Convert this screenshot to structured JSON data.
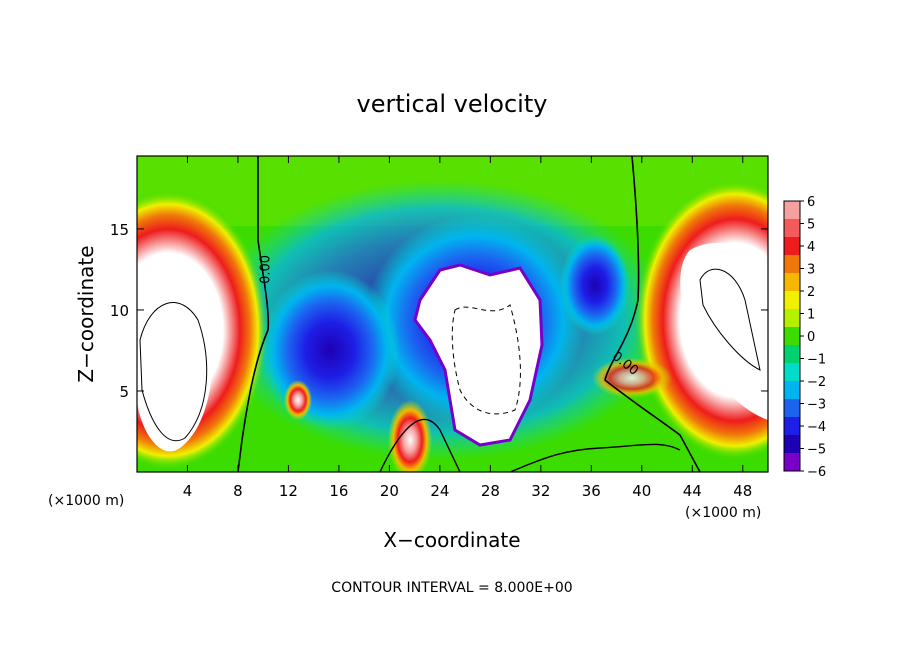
{
  "chart_data": {
    "type": "heatmap",
    "title": "vertical velocity",
    "xlabel": "X−coordinate",
    "ylabel": "Z−coordinate",
    "x_unit_left": "(×1000 m)",
    "x_unit_right": "(×1000 m)",
    "footer": "CONTOUR INTERVAL = 8.000E+00",
    "xlim": [
      0,
      50
    ],
    "ylim": [
      0,
      19.5
    ],
    "x_ticks": [
      4,
      8,
      12,
      16,
      20,
      24,
      28,
      32,
      36,
      40,
      44,
      48
    ],
    "x_tick_labels": [
      "4",
      "8",
      "12",
      "16",
      "20",
      "24",
      "28",
      "32",
      "36",
      "40",
      "44",
      "48"
    ],
    "y_ticks": [
      5,
      10,
      15
    ],
    "y_tick_labels": [
      "5",
      "10",
      "15"
    ],
    "contour_labels": [
      {
        "text": "0.00",
        "x": 10.5,
        "y": 12.5
      },
      {
        "text": "0.00",
        "x": 38.5,
        "y": 6.5
      }
    ],
    "colorbar": {
      "vmin": -6,
      "vmax": 6,
      "tick_labels": [
        "6",
        "5",
        "4",
        "3",
        "2",
        "1",
        "0",
        "−1",
        "−2",
        "−3",
        "−4",
        "−5",
        "−6"
      ],
      "colors": [
        "#f7a0a0",
        "#f45a5a",
        "#ee1c1c",
        "#f0780a",
        "#f4b800",
        "#f0f000",
        "#b4f000",
        "#3cdc00",
        "#00d26e",
        "#00dcc8",
        "#00b4f0",
        "#1c64f0",
        "#1e1ee6",
        "#1e00b4",
        "#7800c8"
      ]
    },
    "features": [
      {
        "type": "updraft",
        "x": 1.5,
        "z": 9.0
      },
      {
        "type": "updraft",
        "x": 48.0,
        "z": 10.0
      },
      {
        "type": "downdraft",
        "x": 27.0,
        "z": 10.0
      },
      {
        "type": "updraft",
        "x": 13.0,
        "z": 5.0
      },
      {
        "type": "updraft",
        "x": 21.5,
        "z": 2.0
      }
    ]
  }
}
